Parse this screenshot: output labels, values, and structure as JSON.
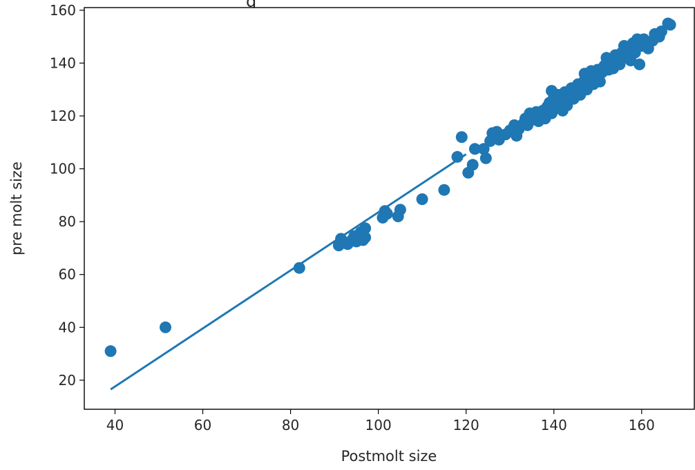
{
  "chart_data": {
    "type": "scatter",
    "title_fragment": "g",
    "xlabel": "Postmolt size",
    "ylabel": "pre molt size",
    "xlim": [
      33,
      172
    ],
    "ylim": [
      9,
      161
    ],
    "xticks": [
      40,
      60,
      80,
      100,
      120,
      140,
      160
    ],
    "yticks": [
      20,
      40,
      60,
      80,
      100,
      120,
      140,
      160
    ],
    "grid": false,
    "color": "#1f77b4",
    "fit_line": {
      "x": [
        39,
        120
      ],
      "y": [
        16.5,
        105.5
      ]
    },
    "points": [
      [
        39,
        31
      ],
      [
        51.5,
        40
      ],
      [
        82,
        62.5
      ],
      [
        91,
        71
      ],
      [
        91.5,
        73.5
      ],
      [
        92.5,
        72
      ],
      [
        93,
        71.5
      ],
      [
        94,
        73
      ],
      [
        94.5,
        74.5
      ],
      [
        95,
        72.5
      ],
      [
        95.5,
        75
      ],
      [
        96,
        76
      ],
      [
        96.5,
        73
      ],
      [
        97,
        77.5
      ],
      [
        97,
        74
      ],
      [
        101,
        81.5
      ],
      [
        101.5,
        84
      ],
      [
        102,
        83
      ],
      [
        104.5,
        82
      ],
      [
        105,
        84.5
      ],
      [
        110,
        88.5
      ],
      [
        115,
        92
      ],
      [
        118,
        104.5
      ],
      [
        119,
        112
      ],
      [
        120.5,
        98.5
      ],
      [
        121.5,
        101.5
      ],
      [
        122,
        107.5
      ],
      [
        124,
        107.5
      ],
      [
        124.5,
        104
      ],
      [
        125.5,
        110.5
      ],
      [
        126,
        113.5
      ],
      [
        127,
        114
      ],
      [
        127.5,
        111
      ],
      [
        128,
        112.5
      ],
      [
        129,
        113
      ],
      [
        130,
        114.5
      ],
      [
        131,
        116.5
      ],
      [
        131.5,
        112.5
      ],
      [
        132,
        115
      ],
      [
        133,
        117
      ],
      [
        133.5,
        119
      ],
      [
        134,
        116.5
      ],
      [
        134.5,
        121
      ],
      [
        135,
        118.5
      ],
      [
        135.5,
        119.5
      ],
      [
        136,
        121.5
      ],
      [
        136.5,
        118
      ],
      [
        137,
        120.5
      ],
      [
        137.5,
        122
      ],
      [
        138,
        119
      ],
      [
        138.5,
        123.5
      ],
      [
        139,
        125
      ],
      [
        139.5,
        121
      ],
      [
        139.5,
        129.5
      ],
      [
        140,
        127
      ],
      [
        140.5,
        123
      ],
      [
        141,
        124.5
      ],
      [
        141,
        128
      ],
      [
        141.5,
        126
      ],
      [
        142,
        122
      ],
      [
        142.5,
        129
      ],
      [
        143,
        124
      ],
      [
        143.5,
        127.5
      ],
      [
        144,
        130.5
      ],
      [
        144.5,
        126.5
      ],
      [
        145,
        129
      ],
      [
        145.5,
        132
      ],
      [
        146,
        128
      ],
      [
        146.5,
        131
      ],
      [
        147,
        133.5
      ],
      [
        147,
        136
      ],
      [
        147.5,
        130
      ],
      [
        148,
        134
      ],
      [
        148.5,
        137
      ],
      [
        149,
        132
      ],
      [
        149.5,
        135
      ],
      [
        150,
        137.5
      ],
      [
        150.5,
        133
      ],
      [
        151,
        136.5
      ],
      [
        151.5,
        139
      ],
      [
        152,
        142
      ],
      [
        152.5,
        137.5
      ],
      [
        153,
        140.5
      ],
      [
        153.5,
        138
      ],
      [
        154,
        143
      ],
      [
        154.5,
        141
      ],
      [
        155,
        139.5
      ],
      [
        155.5,
        144
      ],
      [
        156,
        146.5
      ],
      [
        156.5,
        142.5
      ],
      [
        157,
        145
      ],
      [
        157.5,
        141
      ],
      [
        158,
        147.5
      ],
      [
        158.5,
        144
      ],
      [
        159,
        149
      ],
      [
        159.5,
        139.5
      ],
      [
        160,
        146.5
      ],
      [
        160.5,
        149
      ],
      [
        161.5,
        145.5
      ],
      [
        162.5,
        148.5
      ],
      [
        163,
        151
      ],
      [
        164,
        150
      ],
      [
        164.5,
        152
      ],
      [
        166,
        155
      ],
      [
        166.5,
        154.5
      ]
    ]
  }
}
